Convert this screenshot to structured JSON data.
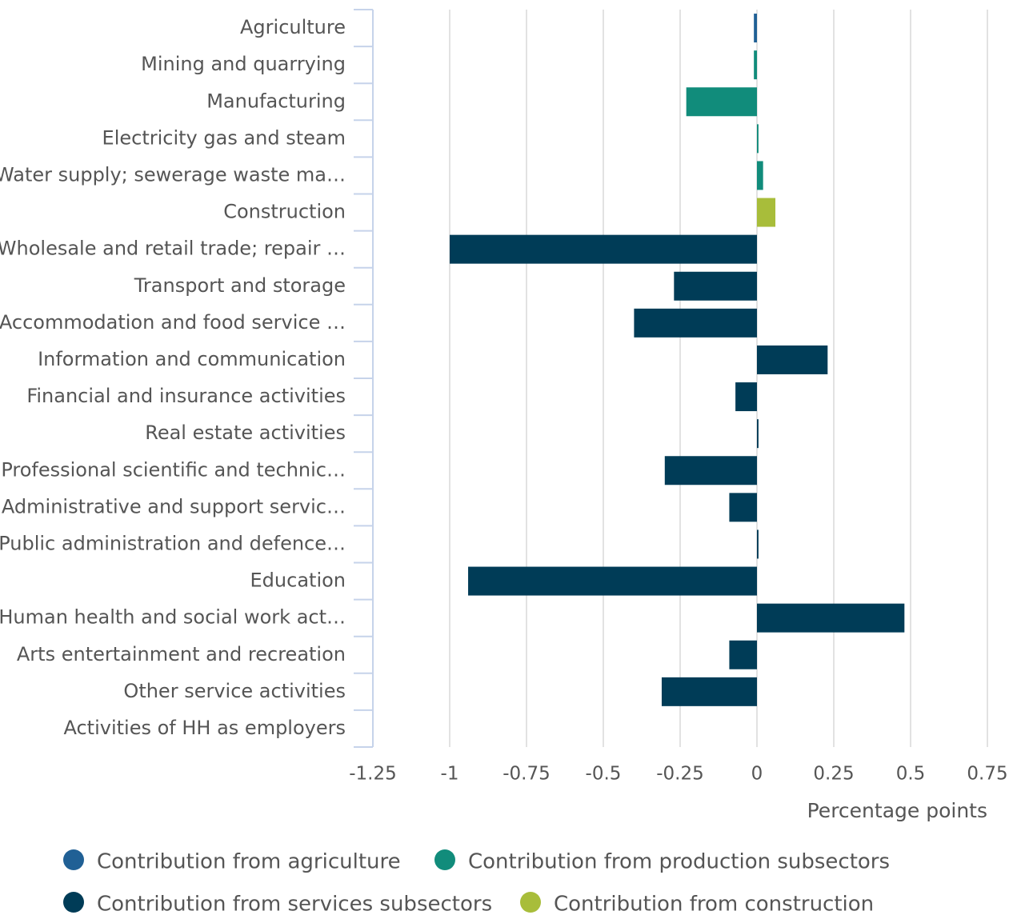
{
  "chart_data": {
    "type": "hbar",
    "categories": [
      "Agriculture",
      "Mining and quarrying",
      "Manufacturing",
      "Electricity gas and steam",
      "Water supply; sewerage waste ma…",
      "Construction",
      "Wholesale and retail trade; repair …",
      "Transport and storage",
      "Accommodation and food service …",
      "Information and communication",
      "Financial and insurance activities",
      "Real estate activities",
      "Professional scientific and technic…",
      "Administrative and support servic…",
      "Public administration and defence…",
      "Education",
      "Human health and social work act…",
      "Arts entertainment and recreation",
      "Other service activities",
      "Activities of HH as employers"
    ],
    "series": [
      {
        "name": "Contribution from agriculture",
        "color": "#206095",
        "values": [
          -0.01,
          null,
          null,
          null,
          null,
          null,
          null,
          null,
          null,
          null,
          null,
          null,
          null,
          null,
          null,
          null,
          null,
          null,
          null,
          null
        ]
      },
      {
        "name": "Contribution from production subsectors",
        "color": "#118c7b",
        "values": [
          null,
          -0.01,
          -0.23,
          0.005,
          0.02,
          null,
          null,
          null,
          null,
          null,
          null,
          null,
          null,
          null,
          null,
          null,
          null,
          null,
          null,
          null
        ]
      },
      {
        "name": "Contribution from services subsectors",
        "color": "#003c57",
        "values": [
          null,
          null,
          null,
          null,
          null,
          null,
          -1.0,
          -0.27,
          -0.4,
          0.23,
          -0.07,
          0.005,
          -0.3,
          -0.09,
          0.005,
          -0.94,
          0.48,
          -0.09,
          -0.31,
          0
        ]
      },
      {
        "name": "Contribution from construction",
        "color": "#a8bd3a",
        "values": [
          null,
          null,
          null,
          null,
          null,
          0.06,
          null,
          null,
          null,
          null,
          null,
          null,
          null,
          null,
          null,
          null,
          null,
          null,
          null,
          null
        ]
      }
    ],
    "xlabel": "Percentage points",
    "xlim": [
      -1.25,
      0.75
    ],
    "xticks": [
      -1.25,
      -1,
      -0.75,
      -0.5,
      -0.25,
      0,
      0.25,
      0.5,
      0.75
    ],
    "grid": true
  }
}
